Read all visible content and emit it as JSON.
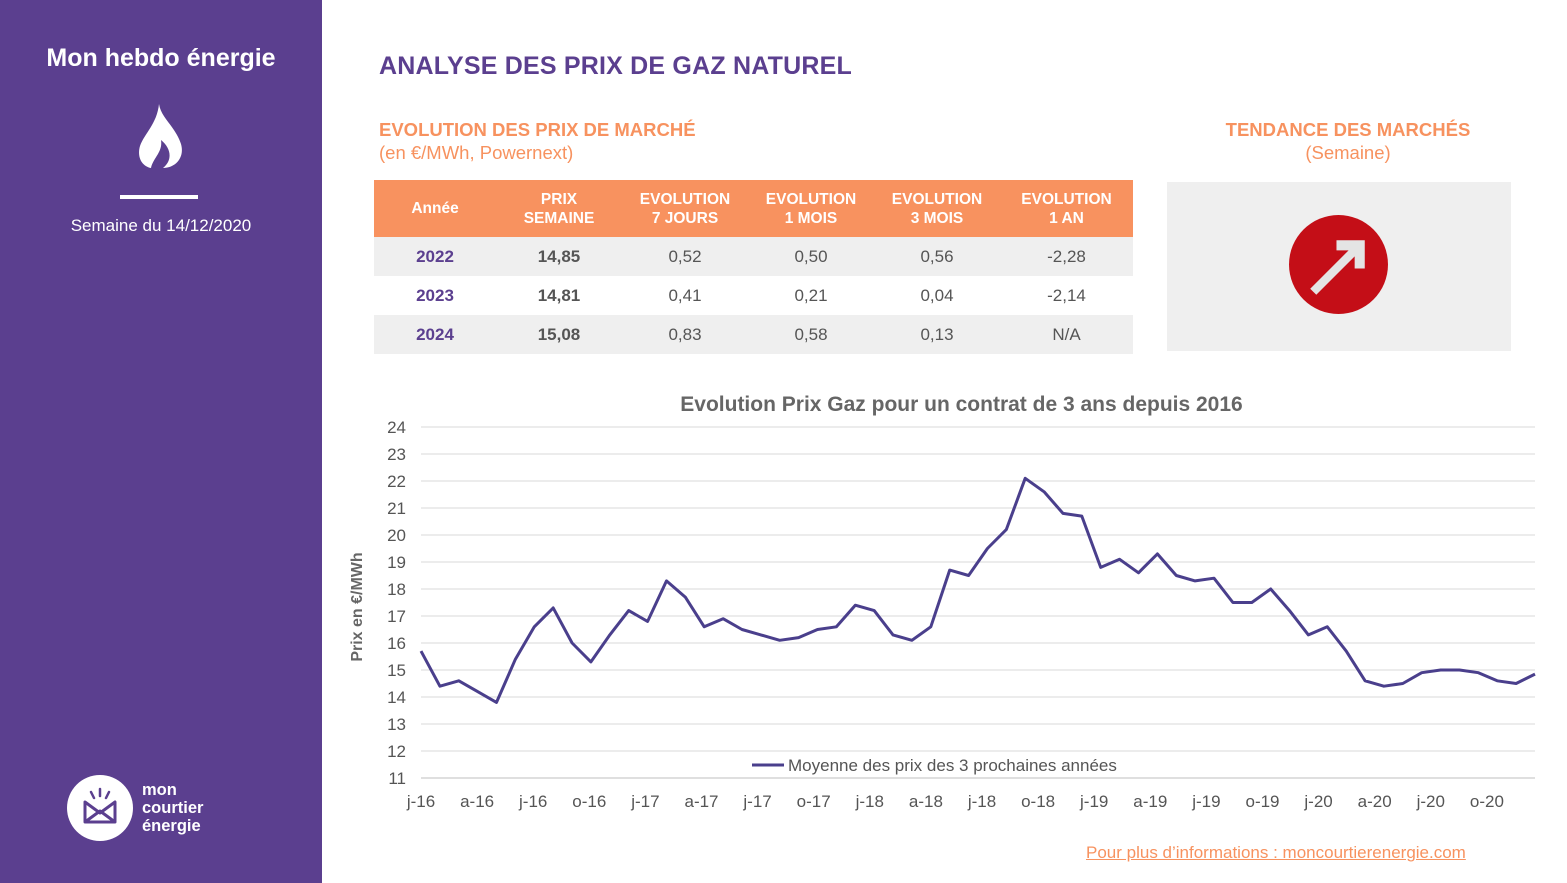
{
  "sidebar": {
    "title": "Mon hebdo énergie",
    "week_label": "Semaine du 14/12/2020",
    "logo_lines": [
      "mon",
      "courtier",
      "énergie"
    ]
  },
  "header": {
    "title": "ANALYSE DES PRIX DE GAZ NATUREL"
  },
  "market": {
    "title": "EVOLUTION DES PRIX DE MARCHÉ",
    "subtitle": "(en €/MWh, Powernext)",
    "columns": [
      [
        "Année"
      ],
      [
        "PRIX",
        "SEMAINE"
      ],
      [
        "EVOLUTION",
        "7 JOURS"
      ],
      [
        "EVOLUTION",
        "1 MOIS"
      ],
      [
        "EVOLUTION",
        "3 MOIS"
      ],
      [
        "EVOLUTION",
        "1 AN"
      ]
    ],
    "rows": [
      [
        "2022",
        "14,85",
        "0,52",
        "0,50",
        "0,56",
        "-2,28"
      ],
      [
        "2023",
        "14,81",
        "0,41",
        "0,21",
        "0,04",
        "-2,14"
      ],
      [
        "2024",
        "15,08",
        "0,83",
        "0,58",
        "0,13",
        "N/A"
      ]
    ]
  },
  "trend": {
    "title": "TENDANCE DES MARCHÉS",
    "subtitle": "(Semaine)",
    "direction": "up-right-arrow-icon"
  },
  "footer": {
    "link": "Pour plus d’informations : moncourtierenergie.com"
  },
  "colors": {
    "brand_purple": "#5b3f8f",
    "accent_orange": "#f8925f",
    "line": "#4a3f8c",
    "trend_red": "#c40e17"
  },
  "chart_data": {
    "type": "line",
    "title": "Evolution Prix Gaz pour un contrat de 3 ans depuis 2016",
    "ylabel": "Prix en €/MWh",
    "xlabel": "",
    "ylim": [
      11,
      24
    ],
    "yticks": [
      11,
      12,
      13,
      14,
      15,
      16,
      17,
      18,
      19,
      20,
      21,
      22,
      23,
      24
    ],
    "xlim": [
      "2016-01",
      "2020-12"
    ],
    "xtick_labels": [
      "j-16",
      "a-16",
      "j-16",
      "o-16",
      "j-17",
      "a-17",
      "j-17",
      "o-17",
      "j-18",
      "a-18",
      "j-18",
      "o-18",
      "j-19",
      "a-19",
      "j-19",
      "o-19",
      "j-20",
      "a-20",
      "j-20",
      "o-20"
    ],
    "grid": "horizontal",
    "legend_position": "bottom",
    "series": [
      {
        "name": "Moyenne des prix des 3 prochaines années",
        "x": [
          "2016-01",
          "2016-02",
          "2016-03",
          "2016-04",
          "2016-05",
          "2016-06",
          "2016-07",
          "2016-08",
          "2016-09",
          "2016-10",
          "2016-11",
          "2016-12",
          "2017-01",
          "2017-02",
          "2017-03",
          "2017-04",
          "2017-05",
          "2017-06",
          "2017-07",
          "2017-08",
          "2017-09",
          "2017-10",
          "2017-11",
          "2017-12",
          "2018-01",
          "2018-02",
          "2018-03",
          "2018-04",
          "2018-05",
          "2018-06",
          "2018-07",
          "2018-08",
          "2018-09",
          "2018-10",
          "2018-11",
          "2018-12",
          "2019-01",
          "2019-02",
          "2019-03",
          "2019-04",
          "2019-05",
          "2019-06",
          "2019-07",
          "2019-08",
          "2019-09",
          "2019-10",
          "2019-11",
          "2019-12",
          "2020-01",
          "2020-02",
          "2020-03",
          "2020-04",
          "2020-05",
          "2020-06",
          "2020-07",
          "2020-08",
          "2020-09",
          "2020-10",
          "2020-11",
          "2020-12"
        ],
        "values": [
          15.7,
          14.4,
          14.6,
          14.2,
          13.8,
          15.4,
          16.6,
          17.3,
          16.0,
          15.3,
          16.3,
          17.2,
          16.8,
          18.3,
          17.7,
          16.6,
          16.9,
          16.5,
          16.3,
          16.1,
          16.2,
          16.5,
          16.6,
          17.4,
          17.2,
          16.3,
          16.1,
          16.6,
          18.7,
          18.5,
          19.5,
          20.2,
          22.1,
          21.6,
          20.8,
          20.7,
          18.8,
          19.1,
          18.6,
          19.3,
          18.5,
          18.3,
          18.4,
          17.5,
          17.5,
          18.0,
          17.2,
          16.3,
          16.6,
          15.7,
          14.6,
          14.4,
          14.5,
          14.9,
          15.0,
          15.0,
          14.9,
          14.6,
          14.5,
          14.85
        ]
      }
    ]
  }
}
